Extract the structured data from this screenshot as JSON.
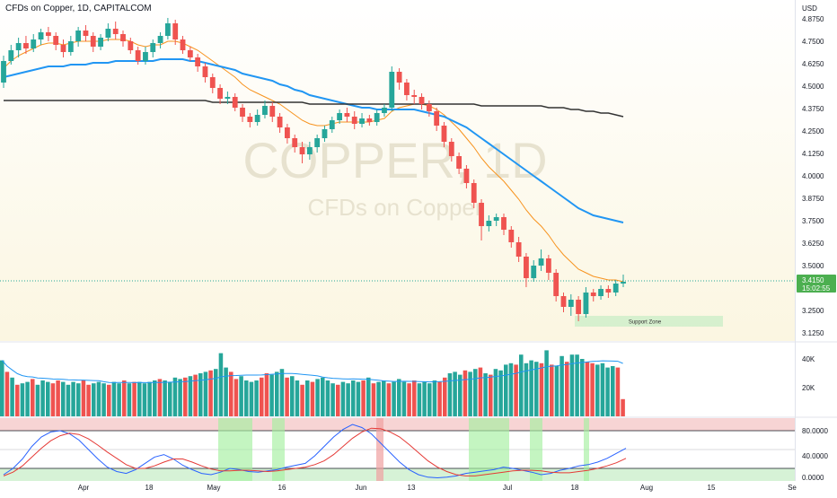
{
  "header": {
    "title": "CFDs on Copper, 1D, CAPITALCOM"
  },
  "watermark": {
    "symbol": "COPPER, 1D",
    "description": "CFDs on Copper"
  },
  "currency_label": "USD",
  "price_axis": {
    "ticks": [
      "4.8750",
      "4.7500",
      "4.6250",
      "4.5000",
      "4.3750",
      "4.2500",
      "4.1250",
      "4.0000",
      "3.8750",
      "3.7500",
      "3.6250",
      "3.5000",
      "3.3750",
      "3.2500",
      "3.1250"
    ],
    "last_price": "3.4150",
    "countdown": "15:02:55"
  },
  "time_axis": {
    "labels": [
      "Apr",
      "18",
      "May",
      "16",
      "Jun",
      "13",
      "Jul",
      "18",
      "Aug",
      "15",
      "Se"
    ]
  },
  "volume_axis": {
    "ticks": [
      "40K",
      "20K"
    ]
  },
  "osc_axis": {
    "ticks": [
      "80.0000",
      "40.0000",
      "0.0000"
    ]
  },
  "annotation": {
    "support_zone": "Support Zone"
  },
  "colors": {
    "up": "#26a69a",
    "down": "#ef5350",
    "ema_fast": "#f7931e",
    "ma_mid": "#2196f3",
    "ma_slow": "#333333",
    "price_badge": "#4caf50",
    "osc_k": "#2962ff",
    "osc_d": "#e53935",
    "highlight_green": "#a5f0a0",
    "highlight_red": "#f0a0a0"
  },
  "chart_data": [
    {
      "type": "candlestick",
      "title": "CFDs on Copper, 1D, CAPITALCOM",
      "ylabel": "USD",
      "ylim": [
        3.08,
        4.98
      ],
      "grid": false,
      "x_tick_labels": [
        "Apr",
        "18",
        "May",
        "16",
        "Jun",
        "13",
        "Jul",
        "18",
        "Aug",
        "15",
        "Se"
      ],
      "candles": [
        [
          4.52,
          4.64,
          4.67,
          4.49
        ],
        [
          4.64,
          4.7,
          4.73,
          4.62
        ],
        [
          4.7,
          4.74,
          4.77,
          4.66
        ],
        [
          4.74,
          4.71,
          4.78,
          4.68
        ],
        [
          4.71,
          4.76,
          4.79,
          4.69
        ],
        [
          4.76,
          4.8,
          4.82,
          4.73
        ],
        [
          4.8,
          4.78,
          4.83,
          4.75
        ],
        [
          4.78,
          4.73,
          4.8,
          4.7
        ],
        [
          4.73,
          4.69,
          4.76,
          4.66
        ],
        [
          4.69,
          4.75,
          4.78,
          4.67
        ],
        [
          4.75,
          4.81,
          4.83,
          4.72
        ],
        [
          4.81,
          4.78,
          4.84,
          4.75
        ],
        [
          4.78,
          4.72,
          4.8,
          4.69
        ],
        [
          4.72,
          4.77,
          4.79,
          4.7
        ],
        [
          4.77,
          4.82,
          4.85,
          4.75
        ],
        [
          4.82,
          4.79,
          4.86,
          4.76
        ],
        [
          4.79,
          4.75,
          4.81,
          4.72
        ],
        [
          4.75,
          4.7,
          4.77,
          4.68
        ],
        [
          4.7,
          4.64,
          4.72,
          4.62
        ],
        [
          4.64,
          4.69,
          4.72,
          4.62
        ],
        [
          4.69,
          4.74,
          4.76,
          4.66
        ],
        [
          4.74,
          4.78,
          4.8,
          4.71
        ],
        [
          4.78,
          4.85,
          4.88,
          4.76
        ],
        [
          4.85,
          4.76,
          4.87,
          4.73
        ],
        [
          4.76,
          4.7,
          4.78,
          4.68
        ],
        [
          4.7,
          4.66,
          4.72,
          4.64
        ],
        [
          4.66,
          4.61,
          4.68,
          4.58
        ],
        [
          4.61,
          4.55,
          4.63,
          4.52
        ],
        [
          4.55,
          4.49,
          4.57,
          4.46
        ],
        [
          4.49,
          4.43,
          4.51,
          4.4
        ],
        [
          4.43,
          4.44,
          4.47,
          4.4
        ],
        [
          4.44,
          4.38,
          4.46,
          4.36
        ],
        [
          4.38,
          4.33,
          4.4,
          4.3
        ],
        [
          4.33,
          4.3,
          4.35,
          4.27
        ],
        [
          4.3,
          4.34,
          4.37,
          4.28
        ],
        [
          4.34,
          4.39,
          4.42,
          4.32
        ],
        [
          4.39,
          4.33,
          4.41,
          4.3
        ],
        [
          4.33,
          4.27,
          4.35,
          4.24
        ],
        [
          4.27,
          4.21,
          4.29,
          4.18
        ],
        [
          4.21,
          4.16,
          4.23,
          4.13
        ],
        [
          4.16,
          4.12,
          4.19,
          4.07
        ],
        [
          4.12,
          4.16,
          4.19,
          4.09
        ],
        [
          4.16,
          4.21,
          4.23,
          4.13
        ],
        [
          4.21,
          4.26,
          4.28,
          4.19
        ],
        [
          4.26,
          4.31,
          4.33,
          4.24
        ],
        [
          4.31,
          4.35,
          4.37,
          4.29
        ],
        [
          4.35,
          4.33,
          4.38,
          4.3
        ],
        [
          4.33,
          4.29,
          4.36,
          4.26
        ],
        [
          4.29,
          4.32,
          4.35,
          4.27
        ],
        [
          4.32,
          4.3,
          4.34,
          4.28
        ],
        [
          4.3,
          4.35,
          4.37,
          4.28
        ],
        [
          4.35,
          4.38,
          4.4,
          4.33
        ],
        [
          4.38,
          4.58,
          4.61,
          4.36
        ],
        [
          4.58,
          4.52,
          4.6,
          4.48
        ],
        [
          4.52,
          4.45,
          4.54,
          4.42
        ],
        [
          4.45,
          4.44,
          4.48,
          4.4
        ],
        [
          4.44,
          4.4,
          4.46,
          4.37
        ],
        [
          4.4,
          4.36,
          4.42,
          4.33
        ],
        [
          4.36,
          4.28,
          4.38,
          4.25
        ],
        [
          4.28,
          4.19,
          4.3,
          4.16
        ],
        [
          4.19,
          4.11,
          4.21,
          4.08
        ],
        [
          4.11,
          4.04,
          4.13,
          4.01
        ],
        [
          4.04,
          3.96,
          4.06,
          3.93
        ],
        [
          3.96,
          3.85,
          3.98,
          3.82
        ],
        [
          3.85,
          3.72,
          3.87,
          3.64
        ],
        [
          3.72,
          3.75,
          3.78,
          3.69
        ],
        [
          3.75,
          3.77,
          3.79,
          3.72
        ],
        [
          3.77,
          3.7,
          3.79,
          3.67
        ],
        [
          3.7,
          3.63,
          3.72,
          3.6
        ],
        [
          3.63,
          3.55,
          3.66,
          3.52
        ],
        [
          3.55,
          3.43,
          3.57,
          3.38
        ],
        [
          3.43,
          3.5,
          3.53,
          3.41
        ],
        [
          3.5,
          3.54,
          3.59,
          3.47
        ],
        [
          3.54,
          3.46,
          3.56,
          3.42
        ],
        [
          3.46,
          3.33,
          3.48,
          3.3
        ],
        [
          3.33,
          3.27,
          3.35,
          3.24
        ],
        [
          3.27,
          3.31,
          3.34,
          3.22
        ],
        [
          3.31,
          3.23,
          3.33,
          3.19
        ],
        [
          3.23,
          3.35,
          3.38,
          3.21
        ],
        [
          3.35,
          3.33,
          3.37,
          3.3
        ],
        [
          3.33,
          3.37,
          3.39,
          3.31
        ],
        [
          3.37,
          3.35,
          3.39,
          3.32
        ],
        [
          3.35,
          3.4,
          3.42,
          3.33
        ],
        [
          3.4,
          3.41,
          3.45,
          3.38
        ]
      ],
      "series": [
        {
          "name": "",
          "values": [
            4.6,
            4.64,
            4.67,
            4.69,
            4.71,
            4.73,
            4.74,
            4.74,
            4.73,
            4.74,
            4.75,
            4.75,
            4.75,
            4.75,
            4.76,
            4.76,
            4.76,
            4.75,
            4.73,
            4.72,
            4.73,
            4.73,
            4.75,
            4.75,
            4.74,
            4.72,
            4.7,
            4.67,
            4.64,
            4.61,
            4.58,
            4.55,
            4.51,
            4.48,
            4.46,
            4.44,
            4.42,
            4.4,
            4.37,
            4.34,
            4.31,
            4.29,
            4.28,
            4.28,
            4.29,
            4.3,
            4.3,
            4.3,
            4.3,
            4.3,
            4.31,
            4.32,
            4.36,
            4.38,
            4.39,
            4.4,
            4.4,
            4.39,
            4.37,
            4.34,
            4.3,
            4.26,
            4.21,
            4.16,
            4.1,
            4.05,
            4.01,
            3.97,
            3.92,
            3.87,
            3.81,
            3.76,
            3.72,
            3.67,
            3.61,
            3.56,
            3.52,
            3.48,
            3.46,
            3.44,
            3.43,
            3.42,
            3.42,
            3.41
          ]
        },
        {
          "name": "",
          "values": [
            4.55,
            4.56,
            4.57,
            4.58,
            4.59,
            4.6,
            4.61,
            4.61,
            4.61,
            4.62,
            4.62,
            4.62,
            4.63,
            4.63,
            4.63,
            4.64,
            4.64,
            4.64,
            4.64,
            4.64,
            4.64,
            4.65,
            4.65,
            4.65,
            4.65,
            4.64,
            4.64,
            4.63,
            4.62,
            4.61,
            4.6,
            4.59,
            4.57,
            4.56,
            4.55,
            4.54,
            4.53,
            4.51,
            4.5,
            4.48,
            4.47,
            4.45,
            4.44,
            4.43,
            4.42,
            4.41,
            4.4,
            4.39,
            4.38,
            4.38,
            4.37,
            4.37,
            4.37,
            4.37,
            4.37,
            4.37,
            4.36,
            4.35,
            4.34,
            4.33,
            4.31,
            4.29,
            4.27,
            4.24,
            4.21,
            4.18,
            4.15,
            4.12,
            4.09,
            4.06,
            4.03,
            4.0,
            3.97,
            3.94,
            3.91,
            3.88,
            3.85,
            3.82,
            3.8,
            3.78,
            3.77,
            3.76,
            3.75,
            3.74
          ]
        },
        {
          "name": "",
          "values": [
            4.42,
            4.42,
            4.42,
            4.42,
            4.42,
            4.42,
            4.42,
            4.42,
            4.42,
            4.42,
            4.42,
            4.42,
            4.42,
            4.42,
            4.42,
            4.42,
            4.42,
            4.42,
            4.42,
            4.42,
            4.42,
            4.42,
            4.42,
            4.42,
            4.42,
            4.42,
            4.42,
            4.42,
            4.41,
            4.41,
            4.41,
            4.41,
            4.41,
            4.41,
            4.41,
            4.41,
            4.41,
            4.41,
            4.41,
            4.41,
            4.41,
            4.4,
            4.4,
            4.4,
            4.4,
            4.4,
            4.4,
            4.4,
            4.4,
            4.4,
            4.4,
            4.4,
            4.4,
            4.4,
            4.4,
            4.4,
            4.4,
            4.4,
            4.4,
            4.4,
            4.4,
            4.4,
            4.4,
            4.4,
            4.39,
            4.39,
            4.39,
            4.39,
            4.39,
            4.39,
            4.39,
            4.39,
            4.39,
            4.38,
            4.38,
            4.38,
            4.37,
            4.37,
            4.36,
            4.36,
            4.35,
            4.35,
            4.34,
            4.33
          ]
        }
      ]
    },
    {
      "type": "bar",
      "ylim": [
        0,
        50000
      ],
      "y_tick_labels": [
        "40K",
        "20K"
      ],
      "values": [
        39000,
        31000,
        27000,
        22000,
        23000,
        24000,
        26000,
        22000,
        25000,
        24000,
        23000,
        25000,
        24000,
        22000,
        24000,
        23000,
        25000,
        22000,
        23000,
        24000,
        23000,
        22000,
        24000,
        23000,
        25000,
        23000,
        24000,
        24000,
        23000,
        24000,
        25000,
        26000,
        25000,
        24000,
        27000,
        26000,
        27000,
        28000,
        29000,
        30000,
        31000,
        32000,
        33000,
        44000,
        34000,
        31000,
        26000,
        28000,
        25000,
        24000,
        25000,
        27000,
        30000,
        29000,
        31000,
        33000,
        27000,
        28000,
        25000,
        22000,
        25000,
        24000,
        26000,
        27000,
        25000,
        23000,
        22000,
        24000,
        23000,
        25000,
        24000,
        25000,
        27000,
        23000,
        24000,
        25000,
        23000,
        24000,
        26000,
        24000,
        23000,
        25000,
        23000,
        24000,
        23000,
        25000,
        24000,
        27000,
        30000,
        31000,
        29000,
        32000,
        31000,
        33000,
        34000,
        30000,
        29000,
        33000,
        32000,
        36000,
        37000,
        36000,
        43000,
        37000,
        39000,
        38000,
        37000,
        46000,
        36000,
        35000,
        42000,
        38000,
        43000,
        43000,
        40000,
        38000,
        37000,
        36000,
        37000,
        34000,
        35000,
        34000,
        12000
      ]
    },
    {
      "type": "line",
      "ylim": [
        0,
        100
      ],
      "y_tick_labels": [
        "80.0000",
        "40.0000",
        "0.0000"
      ],
      "series": [
        {
          "name": "",
          "values": [
            10,
            20,
            35,
            55,
            70,
            78,
            80,
            75,
            65,
            50,
            35,
            22,
            15,
            12,
            18,
            28,
            38,
            42,
            35,
            25,
            18,
            12,
            10,
            14,
            20,
            18,
            15,
            14,
            16,
            18,
            22,
            25,
            28,
            40,
            55,
            70,
            82,
            90,
            85,
            75,
            60,
            45,
            30,
            18,
            10,
            6,
            5,
            6,
            8,
            12,
            14,
            16,
            18,
            22,
            20,
            17,
            14,
            10,
            12,
            17,
            20,
            24,
            26,
            30,
            36,
            44,
            52
          ]
        },
        {
          "name": "",
          "values": [
            8,
            14,
            24,
            38,
            52,
            64,
            72,
            76,
            74,
            67,
            57,
            46,
            36,
            26,
            20,
            20,
            24,
            30,
            35,
            35,
            30,
            24,
            19,
            16,
            16,
            17,
            17,
            16,
            15,
            16,
            18,
            20,
            22,
            26,
            32,
            42,
            55,
            68,
            78,
            84,
            83,
            78,
            70,
            58,
            45,
            32,
            22,
            15,
            10,
            8,
            8,
            10,
            12,
            14,
            16,
            17,
            17,
            16,
            14,
            13,
            13,
            15,
            17,
            20,
            24,
            29,
            36
          ]
        }
      ]
    }
  ]
}
